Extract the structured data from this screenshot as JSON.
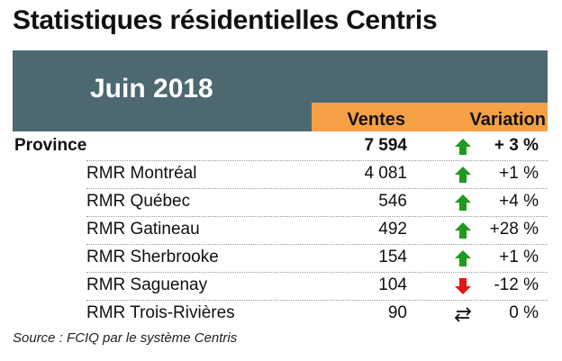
{
  "title": "Statistiques résidentielles Centris",
  "period": "Juin 2018",
  "columns": {
    "sales": "Ventes",
    "variation": "Variation"
  },
  "colors": {
    "header_band": "#4e6872",
    "column_header": "#f5a045",
    "up": "#1e9a1e",
    "down": "#e01818"
  },
  "rows": [
    {
      "name": "Province",
      "sales": "7 594",
      "trend": "up-arrow-icon",
      "variation": "+ 3 %"
    },
    {
      "name": "RMR Montréal",
      "sales": "4 081",
      "trend": "up-arrow-icon",
      "variation": "+1 %"
    },
    {
      "name": "RMR Québec",
      "sales": "546",
      "trend": "up-arrow-icon",
      "variation": "+4 %"
    },
    {
      "name": "RMR Gatineau",
      "sales": "492",
      "trend": "up-arrow-icon",
      "variation": "+28 %"
    },
    {
      "name": "RMR Sherbrooke",
      "sales": "154",
      "trend": "up-arrow-icon",
      "variation": "+1 %"
    },
    {
      "name": "RMR Saguenay",
      "sales": "104",
      "trend": "down-arrow-icon",
      "variation": "-12 %"
    },
    {
      "name": "RMR Trois-Rivières",
      "sales": "90",
      "trend": "stable-arrows-icon",
      "variation": "0 %"
    }
  ],
  "source": "Source : FCIQ par le système Centris"
}
